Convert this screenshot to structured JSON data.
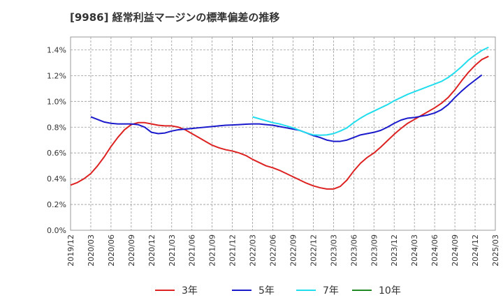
{
  "title": "[9986]  経常利益マージンの標準偏差の推移",
  "chart_data": {
    "type": "line",
    "title": "[9986]  経常利益マージンの標準偏差の推移",
    "xlabel": "",
    "ylabel": "",
    "ylim": [
      0.0,
      1.5
    ],
    "y_ticks": [
      "0.0%",
      "0.2%",
      "0.4%",
      "0.6%",
      "0.8%",
      "1.0%",
      "1.2%",
      "1.4%"
    ],
    "x_ticks": [
      "2019/12",
      "2020/03",
      "2020/06",
      "2020/09",
      "2020/12",
      "2021/03",
      "2021/06",
      "2021/09",
      "2021/12",
      "2022/03",
      "2022/06",
      "2022/09",
      "2022/12",
      "2023/03",
      "2023/06",
      "2023/09",
      "2023/12",
      "2024/03",
      "2024/06",
      "2024/09",
      "2024/12",
      "2025/03"
    ],
    "grid": true,
    "legend_position": "bottom",
    "series": [
      {
        "name": "3年",
        "color": "#dd2222",
        "points": [
          [
            "2019/12",
            0.35
          ],
          [
            "2020/01",
            0.37
          ],
          [
            "2020/02",
            0.4
          ],
          [
            "2020/03",
            0.44
          ],
          [
            "2020/04",
            0.5
          ],
          [
            "2020/05",
            0.57
          ],
          [
            "2020/06",
            0.65
          ],
          [
            "2020/07",
            0.72
          ],
          [
            "2020/08",
            0.78
          ],
          [
            "2020/09",
            0.82
          ],
          [
            "2020/10",
            0.835
          ],
          [
            "2020/11",
            0.835
          ],
          [
            "2020/12",
            0.825
          ],
          [
            "2021/01",
            0.815
          ],
          [
            "2021/02",
            0.81
          ],
          [
            "2021/03",
            0.81
          ],
          [
            "2021/04",
            0.8
          ],
          [
            "2021/05",
            0.78
          ],
          [
            "2021/06",
            0.75
          ],
          [
            "2021/07",
            0.72
          ],
          [
            "2021/08",
            0.69
          ],
          [
            "2021/09",
            0.66
          ],
          [
            "2021/10",
            0.64
          ],
          [
            "2021/11",
            0.625
          ],
          [
            "2021/12",
            0.615
          ],
          [
            "2022/01",
            0.6
          ],
          [
            "2022/02",
            0.58
          ],
          [
            "2022/03",
            0.55
          ],
          [
            "2022/04",
            0.525
          ],
          [
            "2022/05",
            0.5
          ],
          [
            "2022/06",
            0.485
          ],
          [
            "2022/07",
            0.465
          ],
          [
            "2022/08",
            0.44
          ],
          [
            "2022/09",
            0.415
          ],
          [
            "2022/10",
            0.39
          ],
          [
            "2022/11",
            0.365
          ],
          [
            "2022/12",
            0.345
          ],
          [
            "2023/01",
            0.33
          ],
          [
            "2023/02",
            0.32
          ],
          [
            "2023/03",
            0.32
          ],
          [
            "2023/04",
            0.34
          ],
          [
            "2023/05",
            0.39
          ],
          [
            "2023/06",
            0.46
          ],
          [
            "2023/07",
            0.52
          ],
          [
            "2023/08",
            0.565
          ],
          [
            "2023/09",
            0.6
          ],
          [
            "2023/10",
            0.645
          ],
          [
            "2023/11",
            0.695
          ],
          [
            "2023/12",
            0.745
          ],
          [
            "2024/01",
            0.79
          ],
          [
            "2024/02",
            0.83
          ],
          [
            "2024/03",
            0.86
          ],
          [
            "2024/04",
            0.89
          ],
          [
            "2024/05",
            0.92
          ],
          [
            "2024/06",
            0.95
          ],
          [
            "2024/07",
            0.985
          ],
          [
            "2024/08",
            1.03
          ],
          [
            "2024/09",
            1.09
          ],
          [
            "2024/10",
            1.16
          ],
          [
            "2024/11",
            1.225
          ],
          [
            "2024/12",
            1.28
          ],
          [
            "2025/01",
            1.325
          ],
          [
            "2025/02",
            1.35
          ]
        ]
      },
      {
        "name": "5年",
        "color": "#1a1acc",
        "points": [
          [
            "2020/03",
            0.88
          ],
          [
            "2020/04",
            0.86
          ],
          [
            "2020/05",
            0.84
          ],
          [
            "2020/06",
            0.83
          ],
          [
            "2020/07",
            0.825
          ],
          [
            "2020/08",
            0.825
          ],
          [
            "2020/09",
            0.825
          ],
          [
            "2020/10",
            0.82
          ],
          [
            "2020/11",
            0.8
          ],
          [
            "2020/12",
            0.76
          ],
          [
            "2021/01",
            0.75
          ],
          [
            "2021/02",
            0.755
          ],
          [
            "2021/03",
            0.77
          ],
          [
            "2021/04",
            0.78
          ],
          [
            "2021/05",
            0.785
          ],
          [
            "2021/06",
            0.79
          ],
          [
            "2021/07",
            0.795
          ],
          [
            "2021/08",
            0.8
          ],
          [
            "2021/09",
            0.805
          ],
          [
            "2021/10",
            0.81
          ],
          [
            "2021/11",
            0.815
          ],
          [
            "2021/12",
            0.817
          ],
          [
            "2022/01",
            0.82
          ],
          [
            "2022/02",
            0.823
          ],
          [
            "2022/03",
            0.825
          ],
          [
            "2022/04",
            0.825
          ],
          [
            "2022/05",
            0.82
          ],
          [
            "2022/06",
            0.815
          ],
          [
            "2022/07",
            0.805
          ],
          [
            "2022/08",
            0.795
          ],
          [
            "2022/09",
            0.785
          ],
          [
            "2022/10",
            0.775
          ],
          [
            "2022/11",
            0.755
          ],
          [
            "2022/12",
            0.735
          ],
          [
            "2023/01",
            0.72
          ],
          [
            "2023/02",
            0.7
          ],
          [
            "2023/03",
            0.69
          ],
          [
            "2023/04",
            0.69
          ],
          [
            "2023/05",
            0.7
          ],
          [
            "2023/06",
            0.72
          ],
          [
            "2023/07",
            0.74
          ],
          [
            "2023/08",
            0.75
          ],
          [
            "2023/09",
            0.76
          ],
          [
            "2023/10",
            0.775
          ],
          [
            "2023/11",
            0.8
          ],
          [
            "2023/12",
            0.83
          ],
          [
            "2024/01",
            0.855
          ],
          [
            "2024/02",
            0.87
          ],
          [
            "2024/03",
            0.875
          ],
          [
            "2024/04",
            0.885
          ],
          [
            "2024/05",
            0.895
          ],
          [
            "2024/06",
            0.91
          ],
          [
            "2024/07",
            0.935
          ],
          [
            "2024/08",
            0.975
          ],
          [
            "2024/09",
            1.03
          ],
          [
            "2024/10",
            1.08
          ],
          [
            "2024/11",
            1.125
          ],
          [
            "2024/12",
            1.165
          ],
          [
            "2025/01",
            1.205
          ]
        ]
      },
      {
        "name": "7年",
        "color": "#22ddee",
        "points": [
          [
            "2022/03",
            0.88
          ],
          [
            "2022/04",
            0.865
          ],
          [
            "2022/05",
            0.85
          ],
          [
            "2022/06",
            0.835
          ],
          [
            "2022/07",
            0.825
          ],
          [
            "2022/08",
            0.81
          ],
          [
            "2022/09",
            0.795
          ],
          [
            "2022/10",
            0.775
          ],
          [
            "2022/11",
            0.755
          ],
          [
            "2022/12",
            0.74
          ],
          [
            "2023/01",
            0.738
          ],
          [
            "2023/02",
            0.74
          ],
          [
            "2023/03",
            0.75
          ],
          [
            "2023/04",
            0.77
          ],
          [
            "2023/05",
            0.795
          ],
          [
            "2023/06",
            0.835
          ],
          [
            "2023/07",
            0.87
          ],
          [
            "2023/08",
            0.9
          ],
          [
            "2023/09",
            0.925
          ],
          [
            "2023/10",
            0.95
          ],
          [
            "2023/11",
            0.975
          ],
          [
            "2023/12",
            1.005
          ],
          [
            "2024/01",
            1.03
          ],
          [
            "2024/02",
            1.055
          ],
          [
            "2024/03",
            1.075
          ],
          [
            "2024/04",
            1.095
          ],
          [
            "2024/05",
            1.115
          ],
          [
            "2024/06",
            1.135
          ],
          [
            "2024/07",
            1.155
          ],
          [
            "2024/08",
            1.185
          ],
          [
            "2024/09",
            1.225
          ],
          [
            "2024/10",
            1.27
          ],
          [
            "2024/11",
            1.32
          ],
          [
            "2024/12",
            1.36
          ],
          [
            "2025/01",
            1.395
          ],
          [
            "2025/02",
            1.42
          ]
        ]
      },
      {
        "name": "10年",
        "color": "#228822",
        "points": []
      }
    ]
  }
}
